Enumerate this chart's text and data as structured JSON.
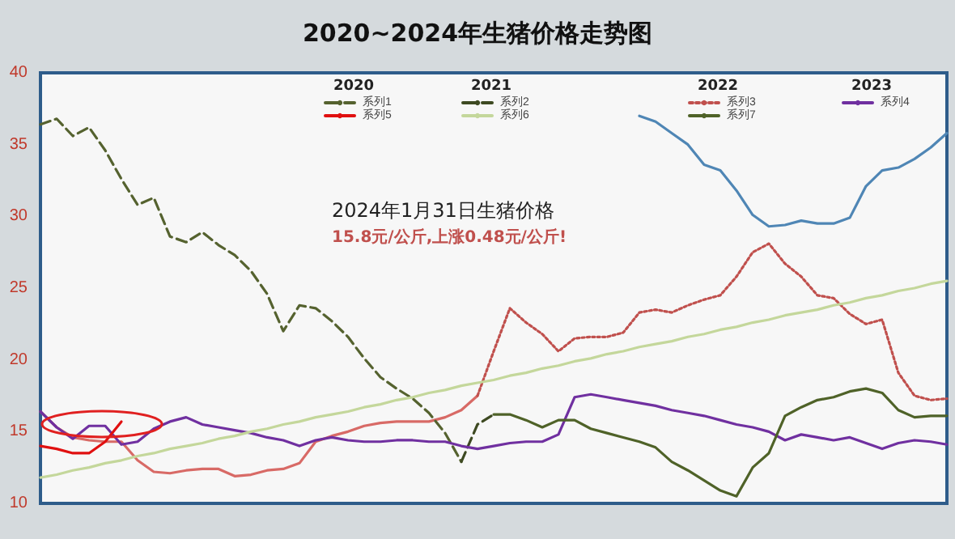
{
  "chart_data": {
    "type": "line",
    "title": "2020~2024年生猪价格走势图",
    "annotations": [
      "2020",
      "2021",
      "2022",
      "2023",
      "2024年1月31日生猪价格",
      "15.8元/公斤,上涨0.48元/公斤!"
    ],
    "categories": [
      null,
      null,
      null,
      null,
      null,
      null,
      null,
      null,
      null,
      null,
      null,
      null,
      null,
      null,
      null,
      null,
      null,
      null,
      null,
      null,
      null,
      null,
      null,
      null,
      null,
      null,
      null,
      null,
      null,
      null,
      null,
      null,
      null,
      null,
      null,
      null,
      null,
      null,
      null,
      null,
      null,
      null,
      null,
      null,
      null,
      null,
      null,
      null,
      null,
      null,
      null,
      null,
      null,
      null,
      null,
      null,
      null
    ],
    "ylim": [
      10,
      40
    ],
    "yticks": [
      10,
      15,
      20,
      25,
      30,
      35,
      40
    ],
    "grid": false,
    "legend": "top",
    "marker": "none",
    "series": [
      {
        "name": "系列1",
        "color": "#55622f",
        "line_style": "dashed",
        "values": [
          36.4,
          36.8,
          35.6,
          36.2,
          34.6,
          32.6,
          30.8,
          31.3,
          28.6,
          28.2,
          28.9,
          28.0,
          27.3,
          26.2,
          24.6,
          22.0,
          23.8,
          23.6,
          22.7,
          21.6,
          20.1,
          18.8,
          18.0,
          17.3,
          16.3,
          14.9,
          12.9,
          null,
          null,
          null,
          null,
          null,
          null,
          null,
          null,
          null,
          null,
          null,
          null,
          null,
          null,
          null,
          null,
          null,
          null,
          null,
          null,
          null,
          null,
          null,
          null,
          null,
          null,
          null,
          null,
          null,
          null
        ]
      },
      {
        "name": "系列2",
        "color": "#3e4a22",
        "line_style": "dashed",
        "values": [
          null,
          null,
          null,
          null,
          null,
          null,
          null,
          null,
          null,
          null,
          null,
          null,
          null,
          null,
          null,
          null,
          null,
          null,
          null,
          null,
          null,
          null,
          null,
          null,
          null,
          null,
          12.9,
          15.5,
          16.2,
          null,
          null,
          null,
          null,
          null,
          null,
          null,
          null,
          null,
          null,
          null,
          null,
          null,
          null,
          null,
          null,
          null,
          null,
          null,
          null,
          null,
          null,
          null,
          null,
          null,
          null,
          null,
          null
        ]
      },
      {
        "name": "系列3",
        "color": "#c0504d",
        "line_style": "dotted",
        "values": [
          null,
          null,
          null,
          null,
          null,
          null,
          null,
          null,
          null,
          null,
          null,
          null,
          null,
          null,
          null,
          null,
          null,
          null,
          null,
          null,
          null,
          null,
          null,
          null,
          null,
          null,
          null,
          17.5,
          20.6,
          23.6,
          22.6,
          21.8,
          20.6,
          21.5,
          21.6,
          21.6,
          21.9,
          23.3,
          23.5,
          23.3,
          23.8,
          24.2,
          24.5,
          25.8,
          27.5,
          28.1,
          26.7,
          25.8,
          24.5,
          24.3,
          23.2,
          22.5,
          22.8,
          19.1,
          17.5,
          17.2,
          17.3
        ]
      },
      {
        "name": "系列4",
        "color": "#7030a0",
        "line_style": "solid",
        "values": [
          16.4,
          15.3,
          14.5,
          15.4,
          15.4,
          14.1,
          14.3,
          15.2,
          15.7,
          16.0,
          15.5,
          15.3,
          15.1,
          14.9,
          14.6,
          14.4,
          14.0,
          14.4,
          14.6,
          14.4,
          14.3,
          14.3,
          14.4,
          14.4,
          14.3,
          14.3,
          14.0,
          13.8,
          14.0,
          14.2,
          14.3,
          14.3,
          14.8,
          17.4,
          17.6,
          17.4,
          17.2,
          17.0,
          16.8,
          16.5,
          16.3,
          16.1,
          15.8,
          15.5,
          15.3,
          15.0,
          14.4,
          14.8,
          14.6,
          14.4,
          14.6,
          14.2,
          13.8,
          14.2,
          14.4,
          14.3,
          14.1
        ]
      },
      {
        "name": "系列5",
        "color": "#e01010",
        "line_style": "solid",
        "values": [
          14.0,
          13.8,
          13.5,
          13.5,
          14.3,
          15.7,
          null,
          null,
          null,
          null,
          null,
          null,
          null,
          null,
          null,
          null,
          null,
          null,
          null,
          null,
          null,
          null,
          null,
          null,
          null,
          null,
          null,
          null,
          null,
          null,
          null,
          null,
          null,
          null,
          null,
          null,
          null,
          null,
          null,
          null,
          null,
          null,
          null,
          null,
          null,
          null,
          null,
          null,
          null,
          null,
          null,
          null,
          null,
          null,
          null,
          null,
          null
        ]
      },
      {
        "name": "系列6",
        "color": "#c4d79b",
        "line_style": "solid",
        "values": [
          11.8,
          12.0,
          12.3,
          12.5,
          12.8,
          13.0,
          13.3,
          13.5,
          13.8,
          14.0,
          14.2,
          14.5,
          14.7,
          15.0,
          15.2,
          15.5,
          15.7,
          16.0,
          16.2,
          16.4,
          16.7,
          16.9,
          17.2,
          17.4,
          17.7,
          17.9,
          18.2,
          18.4,
          18.6,
          18.9,
          19.1,
          19.4,
          19.6,
          19.9,
          20.1,
          20.4,
          20.6,
          20.9,
          21.1,
          21.3,
          21.6,
          21.8,
          22.1,
          22.3,
          22.6,
          22.8,
          23.1,
          23.3,
          23.5,
          23.8,
          24.0,
          24.3,
          24.5,
          24.8,
          25.0,
          25.3,
          25.5
        ]
      },
      {
        "name": "系列7",
        "color": "#4f6228",
        "line_style": "solid",
        "values": [
          null,
          null,
          null,
          null,
          null,
          null,
          null,
          null,
          null,
          null,
          null,
          null,
          null,
          null,
          null,
          null,
          null,
          null,
          null,
          null,
          null,
          null,
          null,
          null,
          null,
          null,
          null,
          null,
          16.2,
          16.2,
          15.8,
          15.3,
          15.8,
          15.8,
          15.2,
          14.9,
          14.6,
          14.3,
          13.9,
          12.9,
          12.3,
          11.6,
          10.9,
          10.5,
          12.5,
          13.5,
          16.1,
          16.7,
          17.2,
          17.4,
          17.8,
          18.0,
          17.7,
          16.5,
          16.0,
          16.1,
          16.1
        ]
      },
      {
        "color": "#d86a66",
        "line_style": "solid",
        "values": [
          16.4,
          15.3,
          14.6,
          14.4,
          14.3,
          14.3,
          13.0,
          12.2,
          12.1,
          12.3,
          12.4,
          12.4,
          11.9,
          12.0,
          12.3,
          12.4,
          12.8,
          14.3,
          14.7,
          15.0,
          15.4,
          15.6,
          15.7,
          15.7,
          15.7,
          16.0,
          16.5,
          17.5,
          null,
          null,
          null,
          null,
          null,
          null,
          null,
          null,
          null,
          null,
          null,
          null,
          null,
          null,
          null,
          null,
          null,
          null,
          null,
          null,
          null,
          null,
          null,
          null,
          null,
          null,
          null,
          null,
          null
        ]
      },
      {
        "color": "#4f86b5",
        "line_style": "solid",
        "values": [
          null,
          null,
          null,
          null,
          null,
          null,
          null,
          null,
          null,
          null,
          null,
          null,
          null,
          null,
          null,
          null,
          null,
          null,
          null,
          null,
          null,
          null,
          null,
          null,
          null,
          null,
          null,
          null,
          null,
          null,
          null,
          null,
          null,
          null,
          null,
          null,
          null,
          37.0,
          36.6,
          35.8,
          35.0,
          33.6,
          33.2,
          31.8,
          30.1,
          29.3,
          29.4,
          29.7,
          29.5,
          29.5,
          29.9,
          32.1,
          33.2,
          33.4,
          34.0,
          34.8,
          35.8
        ]
      }
    ]
  }
}
